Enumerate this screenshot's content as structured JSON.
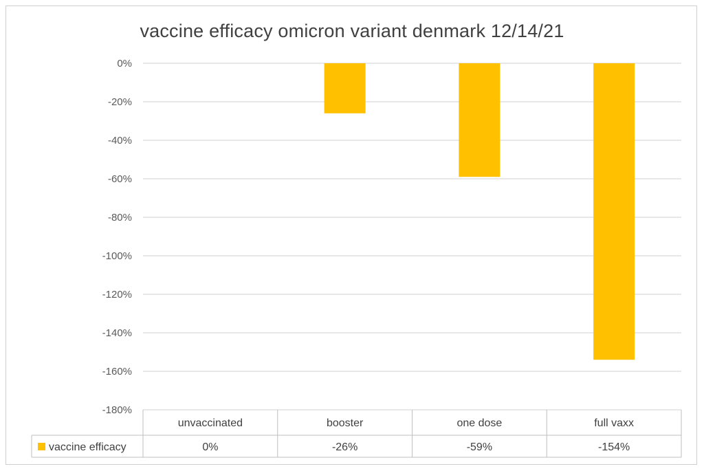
{
  "chart_data": {
    "type": "bar",
    "title": "vaccine efficacy omicron variant denmark 12/14/21",
    "categories": [
      "unvaccinated",
      "booster",
      "one dose",
      "full vaxx"
    ],
    "series": [
      {
        "name": "vaccine efficacy",
        "values": [
          0,
          -26,
          -59,
          -154
        ],
        "value_labels": [
          "0%",
          "-26%",
          "-59%",
          "-154%"
        ],
        "color": "#FFC000"
      }
    ],
    "ylim": [
      -180,
      0
    ],
    "yticks": [
      0,
      -20,
      -40,
      -60,
      -80,
      -100,
      -120,
      -140,
      -160,
      -180
    ],
    "ytick_labels": [
      "0%",
      "-20%",
      "-40%",
      "-60%",
      "-80%",
      "-100%",
      "-120%",
      "-140%",
      "-160%",
      "-180%"
    ],
    "grid": true,
    "legend": "data-table",
    "gridline_color": "#d9d9d9"
  }
}
